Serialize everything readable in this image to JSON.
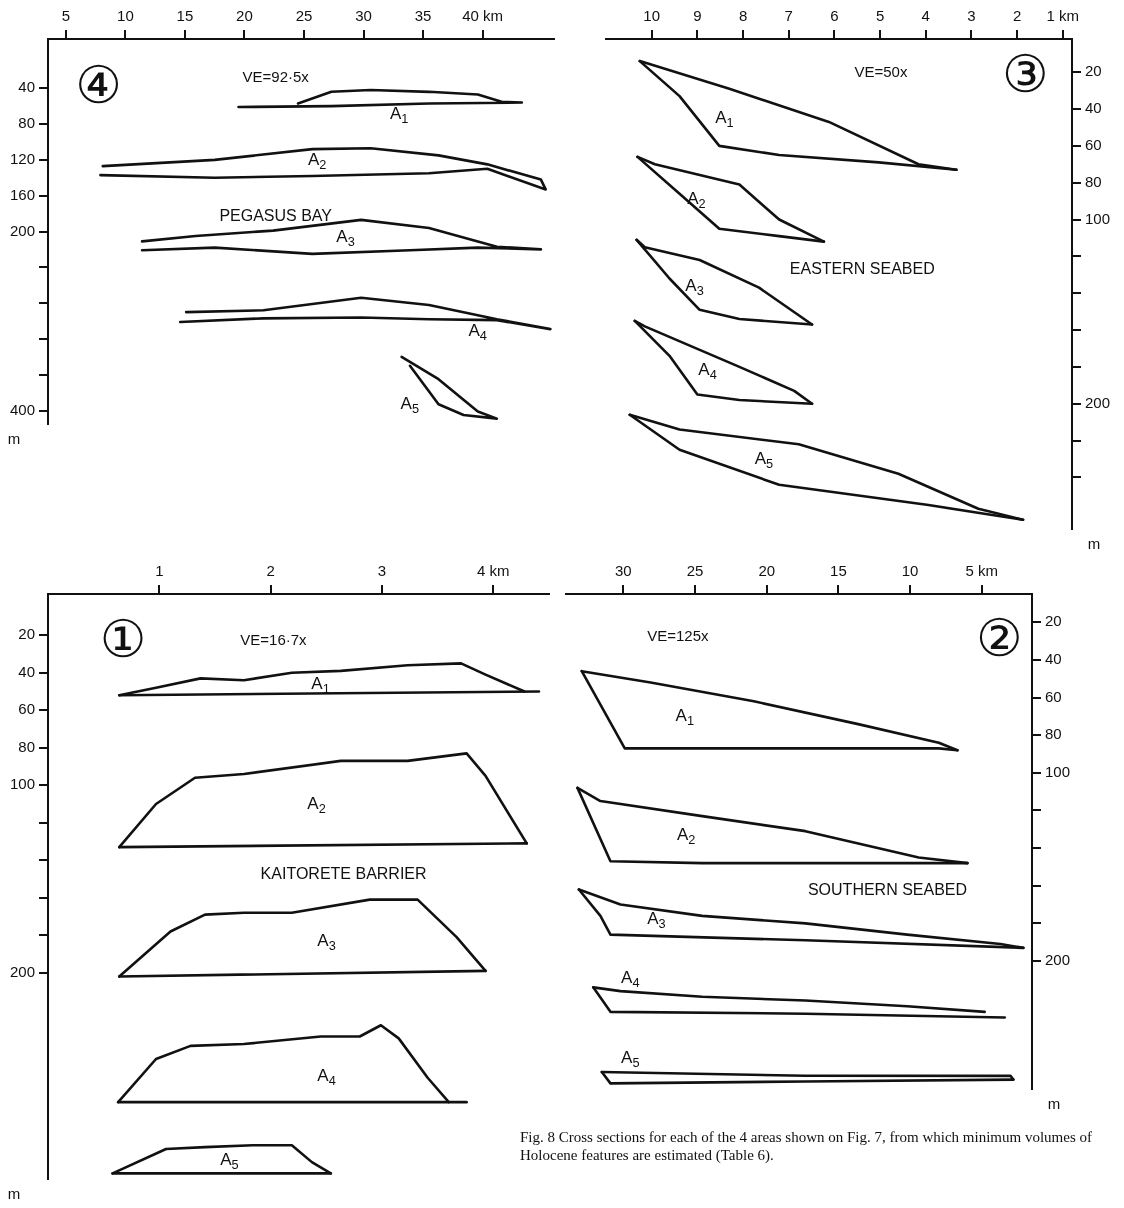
{
  "chart_data": [
    {
      "type": "line",
      "title": "PEGASUS BAY",
      "subtitle": "VE=92·5x",
      "ylabel": "m",
      "marker": "none",
      "xlim": [
        3.5,
        46
      ],
      "xticks": [
        5,
        10,
        15,
        20,
        25,
        30,
        35,
        {
          "value": 40,
          "label": "40 km"
        }
      ],
      "ylim": [
        415,
        -15
      ],
      "yticks": [
        40,
        80,
        120,
        160,
        200,
        {
          "value": 240,
          "label": null
        },
        {
          "value": 280,
          "label": null
        },
        {
          "value": 320,
          "label": null
        },
        {
          "value": 360,
          "label": null
        },
        400
      ],
      "series": [
        {
          "color": "#111111",
          "x": [
            19.5,
            27.3,
            35.5,
            43.3,
            41.6,
            39.6,
            35.5,
            30.6,
            27.3,
            24.5
          ],
          "values": [
            61,
            60,
            57,
            56,
            55,
            47,
            44,
            42,
            44,
            57
          ]
        },
        {
          "color": "#111111",
          "x": [
            7.9,
            17.5,
            25.7,
            35.5,
            40.4,
            45.3,
            44.9,
            40.4,
            36.3,
            30.6,
            25.7,
            17.5,
            8.1
          ],
          "values": [
            137,
            140,
            138,
            135,
            130,
            153,
            142,
            125,
            115,
            107,
            108,
            120,
            127
          ]
        },
        {
          "color": "#111111",
          "x": [
            11.4,
            17.5,
            25.7,
            33.9,
            39.6,
            44.9,
            41.2,
            35.5,
            29.8,
            22.4,
            15.9,
            11.4
          ],
          "values": [
            221,
            218,
            225,
            221,
            218,
            220,
            217,
            196,
            187,
            199,
            205,
            211
          ]
        },
        {
          "color": "#111111",
          "x": [
            14.6,
            21.6,
            29.8,
            35.5,
            41.2,
            45.7,
            41.2,
            35.5,
            29.8,
            21.6,
            15.1
          ],
          "values": [
            301,
            297,
            296,
            298,
            299,
            309,
            298,
            282,
            274,
            288,
            290
          ]
        },
        {
          "color": "#111111",
          "x": [
            33.2,
            36.3,
            39.6,
            41.2,
            38.4,
            36.3,
            33.9
          ],
          "values": [
            340,
            365,
            401,
            409,
            405,
            393,
            350
          ]
        }
      ],
      "annotations": [
        "④",
        "A$_{1}$",
        "A$_{2}$",
        "A$_{3}$",
        "A$_{4}$",
        "A$_{5}$"
      ]
    },
    {
      "type": "line",
      "title": "EASTERN SEABED",
      "subtitle": "VE=50x",
      "ylabel": "m",
      "marker": "none",
      "xlim": [
        11,
        0.8
      ],
      "xticks": [
        10,
        9,
        8,
        7,
        6,
        5,
        4,
        3,
        2,
        {
          "value": 1,
          "label": "1 km"
        }
      ],
      "ylim": [
        268,
        2
      ],
      "yticks": [
        20,
        40,
        60,
        80,
        100,
        {
          "value": 120,
          "label": null
        },
        {
          "value": 140,
          "label": null
        },
        {
          "value": 160,
          "label": null
        },
        {
          "value": 180,
          "label": null
        },
        200,
        {
          "value": 220,
          "label": null
        },
        {
          "value": 240,
          "label": null
        }
      ],
      "series": [
        {
          "color": "#111111",
          "x": [
            10.26,
            8.3,
            6.12,
            4.16,
            3.33
          ],
          "values": [
            14,
            29,
            47,
            70,
            73
          ]
        },
        {
          "color": "#111111",
          "x": [
            10.26,
            9.39,
            8.52,
            7.21,
            5.03,
            3.33
          ],
          "values": [
            14,
            33,
            60,
            65,
            69,
            73
          ]
        },
        {
          "color": "#111111",
          "x": [
            10.31,
            9.93,
            8.08,
            7.21,
            6.23
          ],
          "values": [
            66,
            70,
            81,
            100,
            112
          ]
        },
        {
          "color": "#111111",
          "x": [
            10.31,
            9.39,
            8.52,
            7.21,
            6.23
          ],
          "values": [
            66,
            86,
            105,
            109,
            112
          ]
        },
        {
          "color": "#111111",
          "x": [
            10.33,
            10.15,
            8.95,
            7.65,
            6.49
          ],
          "values": [
            111,
            115,
            122,
            137,
            157
          ]
        },
        {
          "color": "#111111",
          "x": [
            10.33,
            9.61,
            8.95,
            8.08,
            6.49
          ],
          "values": [
            111,
            132,
            149,
            154,
            157
          ]
        },
        {
          "color": "#111111",
          "x": [
            10.37,
            10.15,
            8.08,
            6.88,
            6.49
          ],
          "values": [
            155,
            158,
            180,
            193,
            200
          ]
        },
        {
          "color": "#111111",
          "x": [
            10.37,
            9.61,
            9.0,
            8.08,
            6.49
          ],
          "values": [
            155,
            174,
            195,
            198,
            200
          ]
        },
        {
          "color": "#111111",
          "x": [
            10.48,
            9.39,
            6.78,
            4.6,
            2.85,
            1.87
          ],
          "values": [
            206,
            214,
            222,
            238,
            257,
            263
          ]
        },
        {
          "color": "#111111",
          "x": [
            10.48,
            9.39,
            7.21,
            3.94,
            1.87
          ],
          "values": [
            206,
            225,
            244,
            255,
            263
          ]
        }
      ],
      "annotations": [
        "③",
        "A$_{1}$",
        "A$_{2}$",
        "A$_{3}$",
        "A$_{4}$",
        "A$_{5}$"
      ]
    },
    {
      "type": "line",
      "title": "KAITORETE BARRIER",
      "subtitle": "VE=16·7x",
      "ylabel": "m",
      "marker": "none",
      "xlim": [
        0,
        4.5
      ],
      "xticks": [
        1,
        2,
        3,
        {
          "value": 4,
          "label": "4 km"
        }
      ],
      "ylim": [
        310,
        -2
      ],
      "yticks": [
        20,
        40,
        60,
        80,
        100,
        {
          "value": 120,
          "label": null
        },
        {
          "value": 140,
          "label": null
        },
        {
          "value": 160,
          "label": null
        },
        {
          "value": 180,
          "label": null
        },
        200
      ],
      "series": [
        {
          "color": "#111111",
          "x": [
            0.64,
            0.97,
            1.37,
            1.76,
            2.19,
            2.63,
            3.23,
            3.71,
            3.93,
            4.28
          ],
          "values": [
            52,
            48,
            43,
            44,
            40,
            39,
            36,
            35,
            41,
            50
          ]
        },
        {
          "color": "#111111",
          "x": [
            0.64,
            4.41
          ],
          "values": [
            52,
            50
          ]
        },
        {
          "color": "#111111",
          "x": [
            0.64,
            0.97,
            1.32,
            1.76,
            2.63,
            3.23,
            3.76,
            3.93,
            4.3
          ],
          "values": [
            133,
            110,
            96,
            94,
            87,
            87,
            83,
            95,
            131
          ]
        },
        {
          "color": "#111111",
          "x": [
            0.64,
            4.3
          ],
          "values": [
            133,
            131
          ]
        },
        {
          "color": "#111111",
          "x": [
            0.64,
            1.1,
            1.41,
            1.76,
            2.19,
            2.89,
            3.32,
            3.67,
            3.93
          ],
          "values": [
            202,
            178,
            169,
            168,
            168,
            161,
            161,
            181,
            199
          ]
        },
        {
          "color": "#111111",
          "x": [
            0.64,
            3.93
          ],
          "values": [
            202,
            199
          ]
        },
        {
          "color": "#111111",
          "x": [
            0.63,
            0.97,
            1.28,
            1.76,
            2.45,
            2.8,
            2.99,
            3.15,
            3.41,
            3.6
          ],
          "values": [
            269,
            246,
            239,
            238,
            234,
            234,
            228,
            235,
            256,
            269
          ]
        },
        {
          "color": "#111111",
          "x": [
            0.63,
            3.76
          ],
          "values": [
            269,
            269
          ]
        },
        {
          "color": "#111111",
          "x": [
            0.58,
            1.06,
            1.41,
            1.84,
            2.19,
            2.37,
            2.54
          ],
          "values": [
            307,
            294,
            293,
            292,
            292,
            301,
            307
          ]
        },
        {
          "color": "#111111",
          "x": [
            0.58,
            2.54
          ],
          "values": [
            307,
            307
          ]
        }
      ],
      "annotations": [
        "①",
        "A$_{1}$",
        "A$_{2}$",
        "A$_{3}$",
        "A$_{4}$",
        "A$_{5}$"
      ]
    },
    {
      "type": "line",
      "title": "SOUTHERN SEABED",
      "subtitle": "VE=125x",
      "ylabel": "m",
      "marker": "none",
      "xlim": [
        34,
        1.5
      ],
      "xticks": [
        30,
        25,
        20,
        15,
        10,
        {
          "value": 5,
          "label": "5 km"
        }
      ],
      "ylim": [
        268,
        5
      ],
      "yticks": [
        20,
        40,
        60,
        80,
        100,
        {
          "value": 120,
          "label": null
        },
        {
          "value": 140,
          "label": null
        },
        {
          "value": 160,
          "label": null
        },
        {
          "value": 180,
          "label": null
        },
        200
      ],
      "series": [
        {
          "color": "#111111",
          "x": [
            32.9,
            28.1,
            20.9,
            13.7,
            8.0,
            6.7
          ],
          "values": [
            46,
            52,
            62,
            74,
            84,
            88
          ]
        },
        {
          "color": "#111111",
          "x": [
            32.9,
            29.9,
            24.5,
            17.3,
            8.0,
            6.7
          ],
          "values": [
            46,
            87,
            87,
            87,
            87,
            88
          ]
        },
        {
          "color": "#111111",
          "x": [
            33.2,
            31.6,
            24.5,
            17.3,
            9.4,
            6.0
          ],
          "values": [
            108,
            115,
            123,
            131,
            145,
            148
          ]
        },
        {
          "color": "#111111",
          "x": [
            33.2,
            30.9,
            24.5,
            17.3,
            8.0,
            6.0
          ],
          "values": [
            108,
            147,
            148,
            148,
            148,
            148
          ]
        },
        {
          "color": "#111111",
          "x": [
            33.1,
            30.2,
            24.5,
            17.3,
            10.2,
            3.7,
            2.1
          ],
          "values": [
            162,
            170,
            176,
            180,
            186,
            191,
            193
          ]
        },
        {
          "color": "#111111",
          "x": [
            33.1,
            31.6,
            30.9,
            17.3,
            2.1
          ],
          "values": [
            162,
            176,
            186,
            189,
            193
          ]
        },
        {
          "color": "#111111",
          "x": [
            32.1,
            30.2,
            24.5,
            17.3,
            10.2,
            4.8
          ],
          "values": [
            214,
            216,
            219,
            221,
            224,
            227
          ]
        },
        {
          "color": "#111111",
          "x": [
            32.1,
            30.9,
            17.3,
            3.4
          ],
          "values": [
            214,
            227,
            228,
            230
          ]
        },
        {
          "color": "#111111",
          "x": [
            31.5,
            17.3,
            3.0,
            2.8
          ],
          "values": [
            259,
            261,
            261,
            263
          ]
        },
        {
          "color": "#111111",
          "x": [
            31.5,
            30.9,
            17.3,
            2.8
          ],
          "values": [
            259,
            265,
            264,
            263
          ]
        }
      ],
      "annotations": [
        "②",
        "A$_{1}$",
        "A$_{2}$",
        "A$_{3}$",
        "A$_{4}$",
        "A$_{5}$",
        "Fig. 8 Cross sections for each of the 4 areas shown on Fig. 7, from which minimum volumes of Holocene features are estimated (Table 6)."
      ]
    }
  ]
}
